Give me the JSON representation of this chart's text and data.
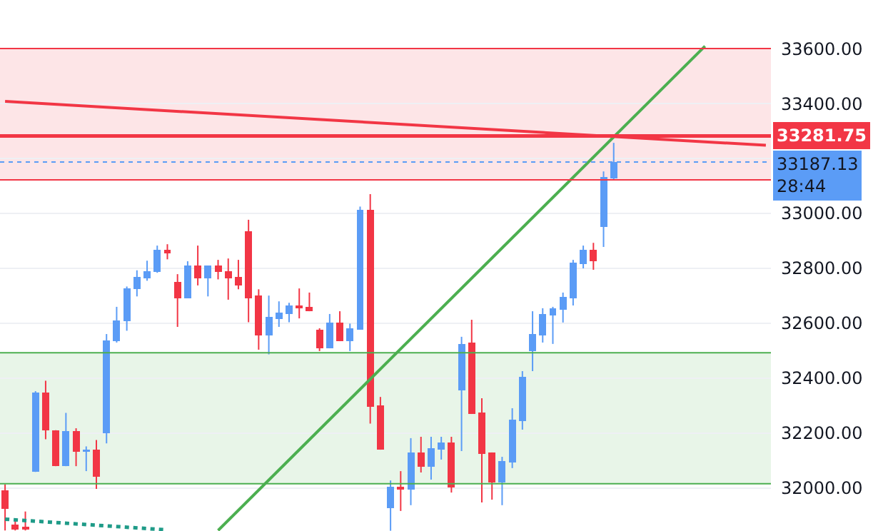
{
  "chart_data": {
    "type": "candlestick",
    "categories": [
      null,
      null,
      null,
      null,
      null,
      null,
      null,
      null,
      null,
      null,
      null,
      null,
      null,
      null,
      null,
      null,
      null,
      null,
      null,
      null,
      null,
      null,
      null,
      null,
      null,
      null,
      null,
      null,
      null,
      null,
      null,
      null,
      null,
      null,
      null,
      null,
      null,
      null,
      null,
      null,
      null,
      null,
      null,
      null,
      null,
      null,
      null,
      null,
      null,
      null,
      null,
      null,
      null,
      null,
      null,
      null,
      null,
      null,
      null,
      null,
      null,
      null,
      null,
      null,
      null,
      null,
      null,
      null,
      null,
      null,
      null,
      null,
      null,
      null,
      null,
      null
    ],
    "ohlc": [
      [
        31993,
        32014,
        31846,
        31924
      ],
      [
        31868,
        31889,
        31846,
        31850
      ],
      [
        31860,
        31915,
        31846,
        31850
      ],
      [
        32059,
        32353,
        32059,
        32348
      ],
      [
        32348,
        32391,
        32178,
        32210
      ],
      [
        32211,
        32211,
        32080,
        32080
      ],
      [
        32080,
        32274,
        32080,
        32208
      ],
      [
        32208,
        32218,
        32080,
        32132
      ],
      [
        32132,
        32152,
        32062,
        32140
      ],
      [
        32140,
        32175,
        31997,
        32042
      ],
      [
        32201,
        32561,
        32163,
        32538
      ],
      [
        32535,
        32660,
        32530,
        32611
      ],
      [
        32608,
        32734,
        32573,
        32727
      ],
      [
        32724,
        32793,
        32698,
        32769
      ],
      [
        32765,
        32828,
        32755,
        32790
      ],
      [
        32786,
        32883,
        32784,
        32868
      ],
      [
        32868,
        32888,
        32833,
        32854
      ],
      [
        32751,
        32779,
        32587,
        32691
      ],
      [
        32691,
        32826,
        32691,
        32810
      ],
      [
        32810,
        32883,
        32738,
        32765
      ],
      [
        32765,
        32810,
        32698,
        32810
      ],
      [
        32810,
        32831,
        32760,
        32786
      ],
      [
        32790,
        32836,
        32686,
        32765
      ],
      [
        32769,
        32831,
        32724,
        32738
      ],
      [
        32935,
        32977,
        32604,
        32691
      ],
      [
        32701,
        32724,
        32504,
        32556
      ],
      [
        32556,
        32701,
        32487,
        32623
      ],
      [
        32615,
        32680,
        32587,
        32639
      ],
      [
        32635,
        32675,
        32604,
        32665
      ],
      [
        32665,
        32727,
        32618,
        32655
      ],
      [
        32660,
        32712,
        32644,
        32644
      ],
      [
        32577,
        32582,
        32499,
        32509
      ],
      [
        32509,
        32634,
        32509,
        32603
      ],
      [
        32603,
        32644,
        32535,
        32535
      ],
      [
        32535,
        32599,
        32499,
        32582
      ],
      [
        32577,
        33025,
        32577,
        33013
      ],
      [
        33013,
        33070,
        32235,
        32296
      ],
      [
        32301,
        32332,
        32140,
        32140
      ],
      [
        31927,
        32028,
        31845,
        32005
      ],
      [
        32005,
        32062,
        31917,
        31995
      ],
      [
        31995,
        32182,
        31938,
        32130
      ],
      [
        32130,
        32187,
        32057,
        32078
      ],
      [
        32078,
        32187,
        32031,
        32145
      ],
      [
        32140,
        32187,
        32104,
        32166
      ],
      [
        32166,
        32187,
        31984,
        32002
      ],
      [
        32355,
        32551,
        32135,
        32525
      ],
      [
        32530,
        32613,
        32270,
        32270
      ],
      [
        32275,
        32327,
        31948,
        32125
      ],
      [
        32130,
        32130,
        31958,
        32021
      ],
      [
        32021,
        32114,
        31938,
        32099
      ],
      [
        32093,
        32291,
        32073,
        32249
      ],
      [
        32244,
        32426,
        32213,
        32405
      ],
      [
        32499,
        32644,
        32426,
        32561
      ],
      [
        32556,
        32655,
        32530,
        32634
      ],
      [
        32629,
        32660,
        32525,
        32655
      ],
      [
        32649,
        32712,
        32603,
        32696
      ],
      [
        32691,
        32831,
        32665,
        32821
      ],
      [
        32816,
        32883,
        32800,
        32868
      ],
      [
        32868,
        32893,
        32795,
        32826
      ],
      [
        32951,
        33153,
        32878,
        33132
      ],
      [
        33127,
        33257,
        33122,
        33187.13
      ],
      null,
      null,
      null,
      null,
      null,
      null,
      null,
      null,
      null,
      null,
      null,
      null,
      null,
      null,
      null
    ],
    "colors": [
      "#f23645",
      "#f23645",
      "#f23645",
      "#5b9cf6",
      "#f23645",
      "#f23645",
      "#5b9cf6",
      "#f23645",
      "#5b9cf6",
      "#f23645",
      "#5b9cf6",
      "#5b9cf6",
      "#5b9cf6",
      "#5b9cf6",
      "#5b9cf6",
      "#5b9cf6",
      "#f23645",
      "#f23645",
      "#5b9cf6",
      "#f23645",
      "#5b9cf6",
      "#f23645",
      "#f23645",
      "#f23645",
      "#f23645",
      "#f23645",
      "#5b9cf6",
      "#5b9cf6",
      "#5b9cf6",
      "#f23645",
      "#f23645",
      "#f23645",
      "#5b9cf6",
      "#f23645",
      "#5b9cf6",
      "#5b9cf6",
      "#f23645",
      "#f23645",
      "#5b9cf6",
      "#f23645",
      "#5b9cf6",
      "#f23645",
      "#5b9cf6",
      "#5b9cf6",
      "#f23645",
      "#5b9cf6",
      "#f23645",
      "#f23645",
      "#f23645",
      "#5b9cf6",
      "#5b9cf6",
      "#5b9cf6",
      "#5b9cf6",
      "#5b9cf6",
      "#5b9cf6",
      "#5b9cf6",
      "#5b9cf6",
      "#5b9cf6",
      "#f23645",
      "#5b9cf6",
      "#5b9cf6",
      null,
      null,
      null,
      null,
      null,
      null,
      null,
      null,
      null,
      null,
      null,
      null,
      null,
      null,
      null
    ],
    "series": [
      {
        "type": "line",
        "color": "#f23645",
        "line_style": "solid",
        "values": [
          33408,
          null,
          null,
          null,
          null,
          null,
          null,
          null,
          null,
          null,
          null,
          null,
          null,
          null,
          null,
          null,
          null,
          null,
          null,
          null,
          null,
          null,
          null,
          null,
          null,
          null,
          null,
          null,
          null,
          null,
          null,
          null,
          null,
          null,
          null,
          null,
          null,
          null,
          null,
          null,
          null,
          null,
          null,
          null,
          null,
          null,
          null,
          null,
          null,
          null,
          null,
          null,
          null,
          null,
          null,
          null,
          null,
          null,
          null,
          null,
          null,
          null,
          null,
          null,
          null,
          null,
          null,
          null,
          null,
          null,
          null,
          null,
          null,
          null,
          null,
          33248
        ]
      },
      {
        "type": "line",
        "color": "#4caf50",
        "line_style": "solid",
        "values": [
          null,
          null,
          null,
          null,
          null,
          null,
          null,
          null,
          null,
          null,
          null,
          null,
          null,
          null,
          null,
          null,
          null,
          null,
          null,
          null,
          null,
          31846,
          null,
          null,
          null,
          null,
          null,
          null,
          null,
          null,
          null,
          null,
          null,
          null,
          null,
          null,
          null,
          null,
          null,
          null,
          null,
          null,
          null,
          null,
          null,
          null,
          null,
          null,
          null,
          null,
          null,
          null,
          null,
          null,
          null,
          null,
          null,
          null,
          null,
          null,
          null,
          null,
          null,
          null,
          null,
          null,
          null,
          null,
          null,
          33609,
          null,
          null,
          null,
          null,
          null,
          null
        ]
      },
      {
        "type": "line",
        "color": "#1f9b88",
        "line_style": "dotted",
        "values": [
          31887,
          null,
          null,
          null,
          null,
          null,
          null,
          null,
          null,
          null,
          null,
          null,
          null,
          null,
          null,
          null,
          31848,
          null,
          null,
          null,
          null,
          null,
          null,
          null,
          null,
          null,
          null,
          null,
          null,
          null,
          null,
          null,
          null,
          null,
          null,
          null,
          null,
          null,
          null,
          null,
          null,
          null,
          null,
          null,
          null,
          null,
          null,
          null,
          null,
          null,
          null,
          null,
          null,
          null,
          null,
          null,
          null,
          null,
          null,
          null,
          null,
          null,
          null,
          null,
          null,
          null,
          null,
          null,
          null,
          null,
          null,
          null,
          null,
          null,
          null,
          null
        ]
      }
    ],
    "ylim": [
      31844,
      33777
    ],
    "yticks": [
      {
        "value": 32000,
        "label": "32000.00"
      },
      {
        "value": 32200,
        "label": "32200.00"
      },
      {
        "value": 32400,
        "label": "32400.00"
      },
      {
        "value": 32600,
        "label": "32600.00"
      },
      {
        "value": 32800,
        "label": "32800.00"
      },
      {
        "value": 33000,
        "label": "33000.00"
      },
      {
        "value": 33200,
        "label": null
      },
      {
        "value": 33400,
        "label": "33400.00"
      },
      {
        "value": 33600,
        "label": "33600.00"
      }
    ],
    "grid": "y",
    "tick_labels": "y",
    "bands": [
      {
        "axis": "y",
        "from": 33122,
        "to": 33600,
        "color": "#f23645"
      },
      {
        "axis": "y",
        "from": 32016,
        "to": 32493,
        "color": "#4caf50"
      }
    ],
    "ref_lines": [
      {
        "axis": "y",
        "value": 33281.75,
        "label": "33281.75",
        "color": "#f23645",
        "line_style": "solid"
      },
      {
        "axis": "y",
        "value": 33187.13,
        "label": "33187.13",
        "color": "#5b9cf6",
        "line_style": "dotted"
      },
      {
        "axis": "y",
        "value": 33600,
        "color": "#f23645",
        "line_style": "solid"
      },
      {
        "axis": "y",
        "value": 33122,
        "color": "#f23645",
        "line_style": "solid"
      },
      {
        "axis": "y",
        "value": 32493,
        "color": "#4caf50",
        "line_style": "solid"
      },
      {
        "axis": "y",
        "value": 32016,
        "color": "#4caf50",
        "line_style": "solid"
      }
    ],
    "annotations": [
      "28:44"
    ]
  }
}
